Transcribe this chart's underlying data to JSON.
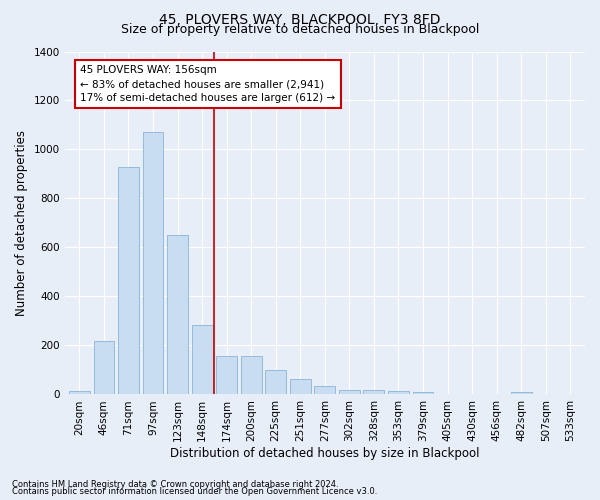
{
  "title": "45, PLOVERS WAY, BLACKPOOL, FY3 8FD",
  "subtitle": "Size of property relative to detached houses in Blackpool",
  "xlabel": "Distribution of detached houses by size in Blackpool",
  "ylabel": "Number of detached properties",
  "bar_labels": [
    "20sqm",
    "46sqm",
    "71sqm",
    "97sqm",
    "123sqm",
    "148sqm",
    "174sqm",
    "200sqm",
    "225sqm",
    "251sqm",
    "277sqm",
    "302sqm",
    "328sqm",
    "353sqm",
    "379sqm",
    "405sqm",
    "430sqm",
    "456sqm",
    "482sqm",
    "507sqm",
    "533sqm"
  ],
  "bar_values": [
    15,
    220,
    930,
    1070,
    650,
    285,
    155,
    155,
    100,
    65,
    35,
    20,
    20,
    15,
    10,
    0,
    0,
    0,
    10,
    0,
    0
  ],
  "bar_color": "#c9ddf2",
  "bar_edge_color": "#8ab4d8",
  "vline_x": 5.5,
  "vline_color": "#cc0000",
  "annotation_text": "45 PLOVERS WAY: 156sqm\n← 83% of detached houses are smaller (2,941)\n17% of semi-detached houses are larger (612) →",
  "annotation_box_color": "#ffffff",
  "annotation_box_edge": "#cc0000",
  "ylim": [
    0,
    1400
  ],
  "yticks": [
    0,
    200,
    400,
    600,
    800,
    1000,
    1200,
    1400
  ],
  "footer1": "Contains HM Land Registry data © Crown copyright and database right 2024.",
  "footer2": "Contains public sector information licensed under the Open Government Licence v3.0.",
  "bg_color": "#e8eef8",
  "plot_bg_color": "#e8eef8",
  "title_fontsize": 10,
  "subtitle_fontsize": 9,
  "tick_fontsize": 7.5,
  "label_fontsize": 8.5,
  "footer_fontsize": 6
}
